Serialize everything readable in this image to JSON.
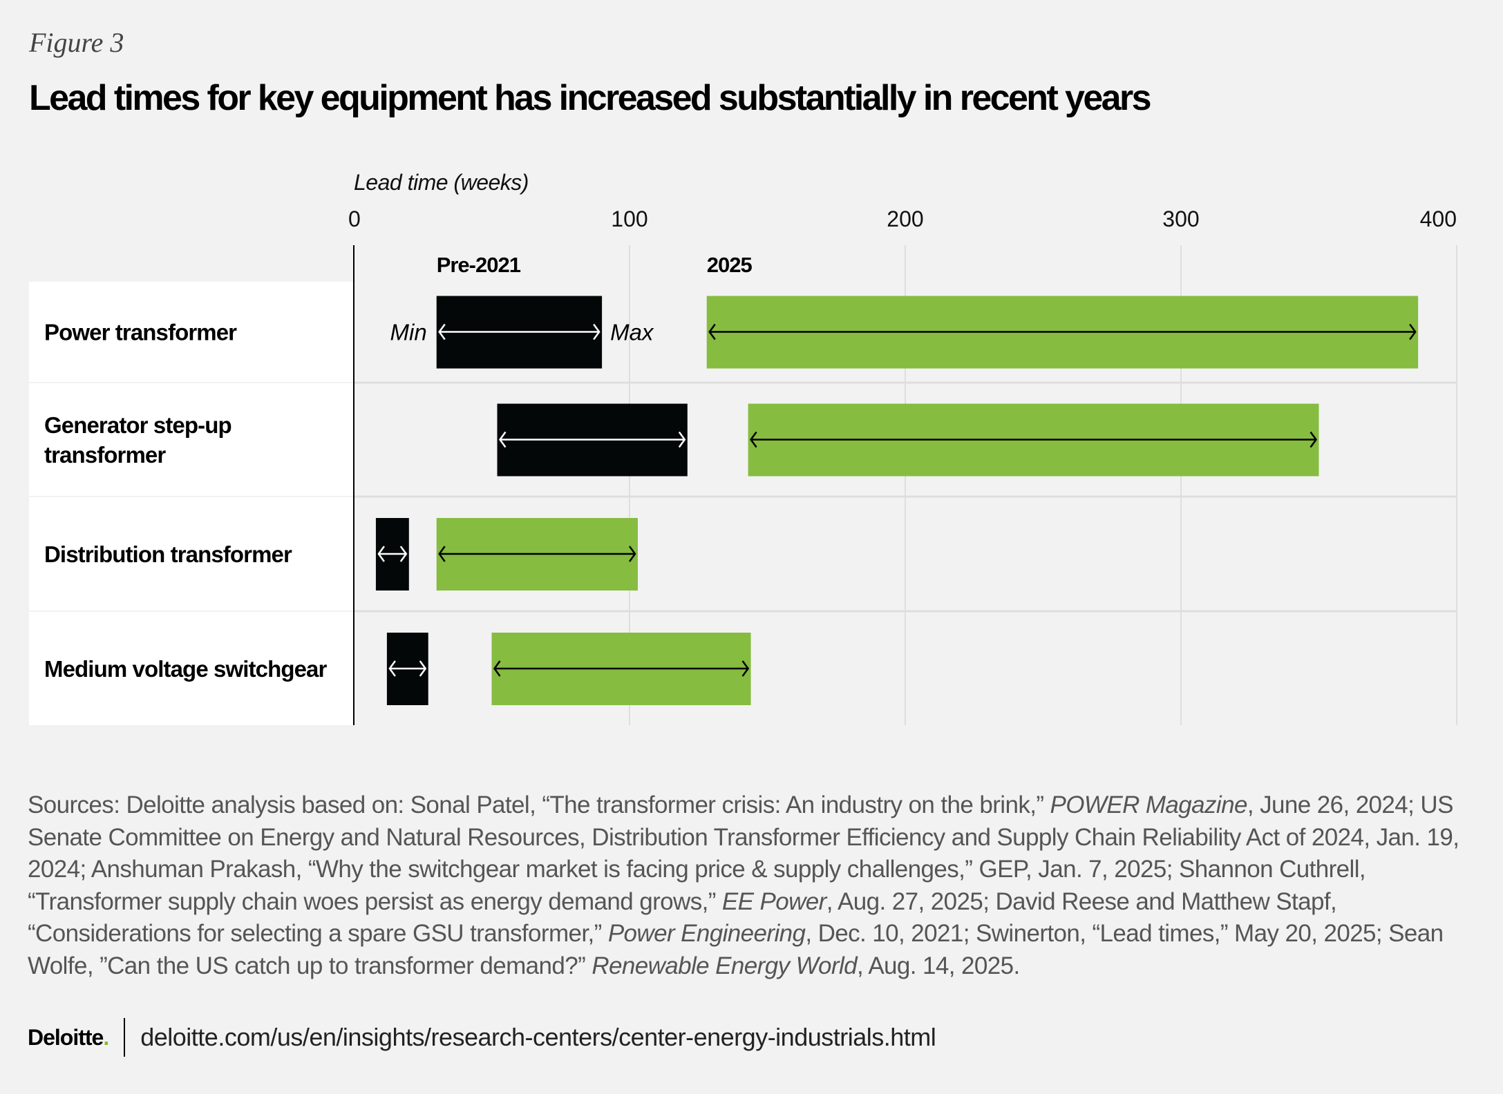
{
  "figure_label": "Figure 3",
  "title": "Lead times for key equipment has increased substantially in recent years",
  "chart_data": {
    "type": "bar",
    "subtype": "range",
    "xlabel": "Lead time (weeks)",
    "xlim": [
      0,
      400
    ],
    "xticks": [
      "0",
      "100",
      "200",
      "300",
      "400"
    ],
    "xtick_values": [
      0,
      100,
      200,
      300,
      400
    ],
    "grid": true,
    "series_labels": {
      "pre": "Pre-2021",
      "post": "2025"
    },
    "min_label": "Min",
    "max_label": "Max",
    "colors": {
      "pre": "#040708",
      "post": "#86bc40"
    },
    "categories": [
      {
        "label": [
          "Power transformer"
        ],
        "pre": [
          30,
          90
        ],
        "post": [
          128,
          386
        ]
      },
      {
        "label": [
          "Generator step-up",
          "transformer"
        ],
        "pre": [
          52,
          121
        ],
        "post": [
          143,
          350
        ]
      },
      {
        "label": [
          "Distribution transformer"
        ],
        "pre": [
          8,
          20
        ],
        "post": [
          30,
          103
        ]
      },
      {
        "label": [
          "Medium voltage switchgear"
        ],
        "pre": [
          12,
          27
        ],
        "post": [
          50,
          144
        ]
      }
    ]
  },
  "sources": [
    {
      "t": "Sources: Deloitte analysis based on: Sonal Patel, “The transformer crisis: An industry on the brink,” "
    },
    {
      "t": "POWER Magazine",
      "i": true
    },
    {
      "t": ", June 26, 2024; US Senate Committee on Energy and Natural Resources, Distribution Transformer Efficiency and Supply Chain Reliability Act of 2024, Jan. 19, 2024; Anshuman Prakash, “Why the switchgear market is facing price & supply challenges,” GEP, Jan. 7, 2025; Shannon Cuthrell, “Transformer supply chain woes persist as energy demand grows,” "
    },
    {
      "t": "EE Power",
      "i": true
    },
    {
      "t": ", Aug. 27, 2025; David Reese and Matthew Stapf, “Considerations for selecting a spare GSU transformer,” "
    },
    {
      "t": "Power Engineering",
      "i": true
    },
    {
      "t": ", Dec. 10, 2021; Swinerton, “Lead times,” May 20, 2025; Sean Wolfe, ”Can the US catch up to transformer demand?” "
    },
    {
      "t": "Renewable Energy World",
      "i": true
    },
    {
      "t": ", Aug. 14, 2025."
    }
  ],
  "footer": {
    "logo": "Deloitte",
    "logo_dot": ".",
    "url": "deloitte.com/us/en/insights/research-centers/center-energy-industrials.html"
  }
}
